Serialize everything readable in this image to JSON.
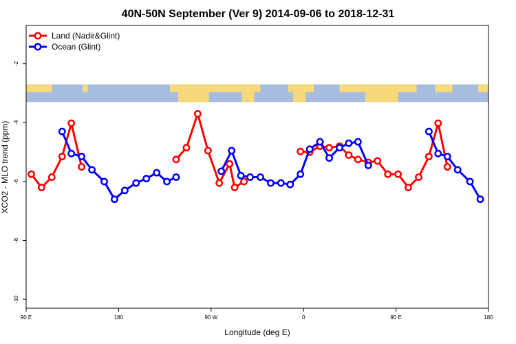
{
  "chart_data": {
    "type": "line",
    "title": "40N-50N September (Ver 9)   2014-09-06 to 2018-12-31",
    "xlabel": "Longitude (deg E)",
    "ylabel": "XCO2 - MLO trend (ppm)",
    "x_ticks": [
      {
        "value": 90,
        "label": "90 E"
      },
      {
        "value": 180,
        "label": "180"
      },
      {
        "value": 270,
        "label": "90 W"
      },
      {
        "value": 360,
        "label": "0"
      },
      {
        "value": 450,
        "label": "90 E"
      },
      {
        "value": 540,
        "label": "180"
      }
    ],
    "y_ticks": [
      {
        "value": -2,
        "label": "-2"
      },
      {
        "value": -4,
        "label": "-4"
      },
      {
        "value": -6,
        "label": "-6"
      },
      {
        "value": -8,
        "label": "-8"
      },
      {
        "value": -10,
        "label": "-10"
      }
    ],
    "xlim": [
      90,
      540
    ],
    "ylim": [
      -10.3,
      -0.7
    ],
    "legend_position": "top-left",
    "map_strip": {
      "y_top": -2.7,
      "y_bottom": -3.3,
      "ocean_color": "#a7bde0",
      "land_color": "#f7d97a"
    },
    "series": [
      {
        "name": "Land (Nadir&Glint)",
        "color": "#ff0000",
        "segments": [
          [
            [
              95,
              -5.75
            ],
            [
              105,
              -6.2
            ],
            [
              115,
              -5.85
            ],
            [
              125,
              -5.15
            ],
            [
              134,
              -4.02
            ],
            [
              144,
              -5.5
            ]
          ],
          [
            [
              236,
              -5.25
            ],
            [
              246,
              -4.85
            ],
            [
              257,
              -3.7
            ],
            [
              267,
              -4.95
            ],
            [
              278,
              -6.05
            ],
            [
              288,
              -5.4
            ],
            [
              293,
              -6.2
            ],
            [
              302,
              -6.0
            ]
          ],
          [
            [
              357,
              -4.98
            ],
            [
              366,
              -5.0
            ],
            [
              376,
              -4.8
            ],
            [
              385,
              -4.85
            ],
            [
              395,
              -4.8
            ],
            [
              404,
              -5.1
            ],
            [
              413,
              -5.25
            ],
            [
              423,
              -5.35
            ],
            [
              432,
              -5.3
            ],
            [
              442,
              -5.75
            ],
            [
              452,
              -5.75
            ],
            [
              462,
              -6.2
            ],
            [
              472,
              -5.85
            ],
            [
              482,
              -5.15
            ],
            [
              491,
              -4.02
            ],
            [
              500,
              -5.5
            ]
          ]
        ]
      },
      {
        "name": "Ocean (Glint)",
        "color": "#0000ff",
        "segments": [
          [
            [
              125,
              -4.3
            ],
            [
              134,
              -5.05
            ],
            [
              144,
              -5.15
            ],
            [
              154,
              -5.6
            ],
            [
              166,
              -6.0
            ],
            [
              176,
              -6.6
            ],
            [
              186,
              -6.3
            ],
            [
              197,
              -6.05
            ],
            [
              207,
              -5.9
            ],
            [
              217,
              -5.7
            ],
            [
              227,
              -6.0
            ],
            [
              236,
              -5.85
            ]
          ],
          [
            [
              280,
              -5.65
            ],
            [
              290,
              -4.95
            ],
            [
              299,
              -5.8
            ],
            [
              308,
              -5.85
            ],
            [
              318,
              -5.85
            ],
            [
              328,
              -6.05
            ],
            [
              338,
              -6.05
            ],
            [
              347,
              -6.1
            ],
            [
              357,
              -5.75
            ],
            [
              366,
              -4.9
            ],
            [
              376,
              -4.65
            ],
            [
              385,
              -5.2
            ],
            [
              395,
              -4.85
            ],
            [
              404,
              -4.7
            ],
            [
              413,
              -4.65
            ],
            [
              423,
              -5.45
            ]
          ],
          [
            [
              482,
              -4.3
            ],
            [
              491,
              -5.05
            ],
            [
              500,
              -5.15
            ],
            [
              510,
              -5.6
            ],
            [
              522,
              -6.0
            ],
            [
              532,
              -6.6
            ]
          ]
        ]
      }
    ]
  }
}
